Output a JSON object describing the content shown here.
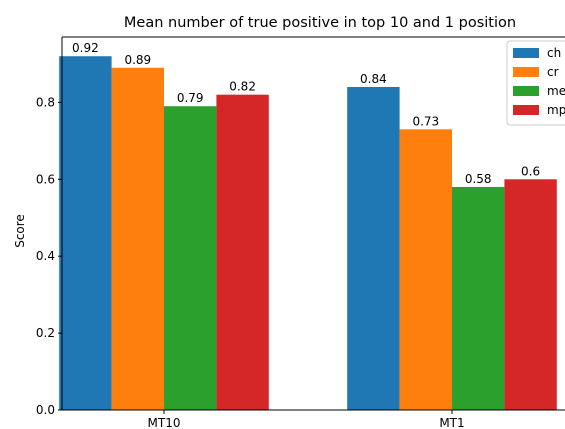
{
  "chart_data": {
    "type": "bar",
    "title": "Mean number of true positive in top 10 and 1 position",
    "xlabel": "",
    "ylabel": "Score",
    "categories": [
      "MT10",
      "MT1"
    ],
    "series": [
      {
        "name": "ch",
        "color": "#1f77b4",
        "values": [
          0.92,
          0.84
        ],
        "labels": [
          "0.92",
          "0.84"
        ]
      },
      {
        "name": "cr",
        "color": "#ff7f0e",
        "values": [
          0.89,
          0.73
        ],
        "labels": [
          "0.89",
          "0.73"
        ]
      },
      {
        "name": "me",
        "color": "#2ca02c",
        "values": [
          0.79,
          0.58
        ],
        "labels": [
          "0.79",
          "0.58"
        ]
      },
      {
        "name": "mp",
        "color": "#d62728",
        "values": [
          0.82,
          0.6
        ],
        "labels": [
          "0.82",
          "0.6"
        ]
      }
    ],
    "ylim": [
      0,
      0.97
    ],
    "yticks": [
      "0.0",
      "0.2",
      "0.4",
      "0.6",
      "0.8"
    ],
    "grid": false,
    "legend_position": "top-right"
  }
}
